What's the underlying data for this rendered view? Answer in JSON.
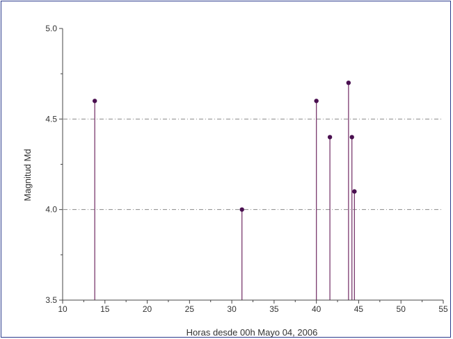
{
  "chart_data": {
    "type": "scatter",
    "style": "stem",
    "xlabel": "Horas desde 00h Mayo 04, 2006",
    "ylabel": "Magnitud Md",
    "xlim": [
      10,
      55
    ],
    "ylim": [
      3.5,
      5.0
    ],
    "x_ticks": [
      "10",
      "15",
      "20",
      "25",
      "30",
      "35",
      "40",
      "45",
      "50",
      "55"
    ],
    "y_ticks": [
      "3.5",
      "4.0",
      "4.5",
      "5.0"
    ],
    "reference_lines": [
      4.0,
      4.5
    ],
    "grid": false,
    "series": [
      {
        "x": [
          13.8,
          31.2,
          40.0,
          41.6,
          43.8,
          44.2,
          44.5
        ],
        "y": [
          4.6,
          4.0,
          4.6,
          4.4,
          4.7,
          4.4,
          4.1
        ]
      }
    ],
    "colors": {
      "stem": "#7a3a6e",
      "marker": "#4a1050",
      "axis": "#444444",
      "reference_line": "#8a8a8a",
      "frame": "#2a3a8c"
    }
  }
}
